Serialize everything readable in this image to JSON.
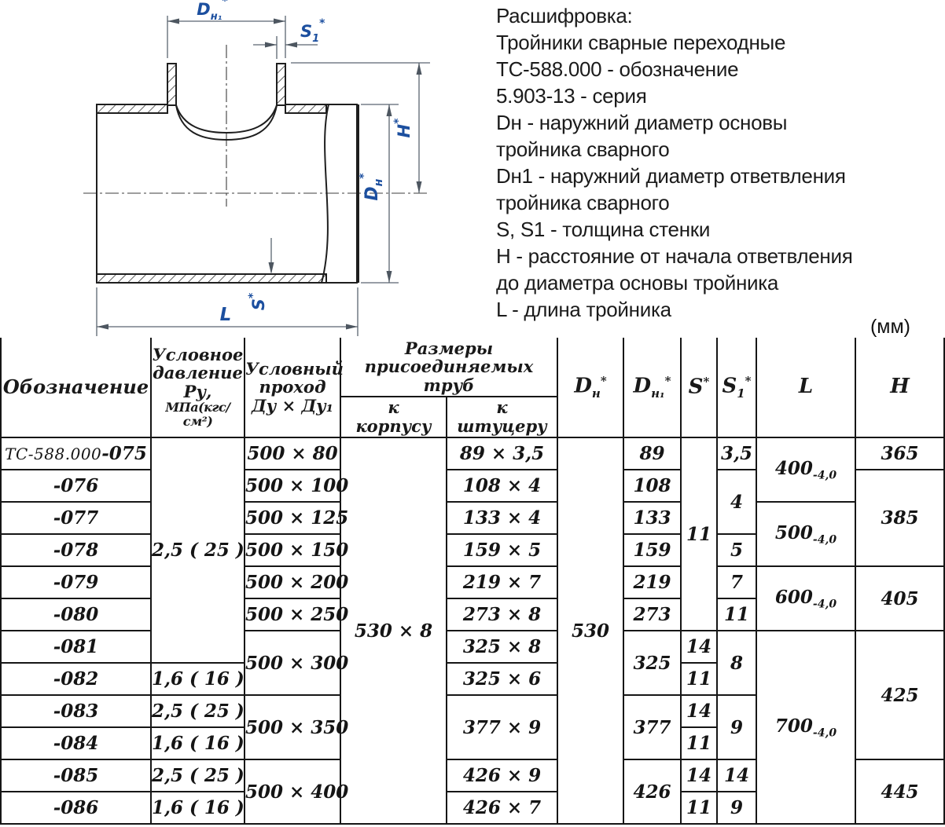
{
  "units_label": "(мм)",
  "legend": {
    "lines": [
      "Расшифровка:",
      "Тройники сварные переходные",
      "ТС-588.000 - обозначение",
      "5.903-13 - серия",
      "Dн - наружний диаметр основы",
      "тройника сварного",
      "Dн1 - наружний диаметр ответвления",
      "тройника сварного",
      "S, S1 - толщина стенки",
      "H - расстояние от начала ответвления",
      "до диаметра основы тройника",
      "L - длина тройника"
    ]
  },
  "drawing": {
    "accent_color": "#1c4f9f",
    "labels": {
      "dn1": {
        "base": "D",
        "sub": "н₁",
        "sup": "*"
      },
      "s1": {
        "base": "S",
        "sub": "1",
        "sup": "*"
      },
      "h": {
        "base": "H",
        "sup": "*"
      },
      "dn": {
        "base": "D",
        "sub": "н",
        "sup": "*"
      },
      "s": {
        "base": "S",
        "sup": "*"
      },
      "l": {
        "base": "L"
      }
    }
  },
  "table": {
    "row_count": 12,
    "headers": {
      "designation": "Обозначение",
      "pressure_lines": [
        "Условное",
        "давление",
        "Ру,",
        "МПа(кгс/см²)"
      ],
      "pass_lines": [
        "Условный",
        "проход",
        "Ду × Ду₁"
      ],
      "pipes_group": [
        "Размеры",
        "присоединяемых труб"
      ],
      "to_body": [
        "к",
        "корпусу"
      ],
      "to_branch": [
        "к",
        "штуцеру"
      ],
      "dn": {
        "base": "D",
        "sub": "н",
        "sup": "*"
      },
      "dn1": {
        "base": "D",
        "sub": "н₁",
        "sup": "*"
      },
      "s": {
        "base": "S",
        "sup": "*"
      },
      "s1": {
        "base": "S",
        "sub": "1",
        "sup": "*"
      },
      "l": "L",
      "h": "H"
    },
    "columns": [
      {
        "key": "designation",
        "cells": [
          {
            "pre": "ТС-588.000",
            "t": "-075"
          },
          {
            "t": "-076"
          },
          {
            "t": "-077"
          },
          {
            "t": "-078"
          },
          {
            "t": "-079"
          },
          {
            "t": "-080"
          },
          {
            "t": "-081"
          },
          {
            "t": "-082"
          },
          {
            "t": "-083"
          },
          {
            "t": "-084"
          },
          {
            "t": "-085"
          },
          {
            "t": "-086"
          }
        ]
      },
      {
        "key": "pressure",
        "cells": [
          {
            "t": "2,5 ( 25 )",
            "rs": 7
          },
          {
            "t": "1,6 ( 16 )"
          },
          {
            "t": "2,5 ( 25 )"
          },
          {
            "t": "1,6 ( 16 )"
          },
          {
            "t": "2,5 ( 25 )"
          },
          {
            "t": "1,6 ( 16 )"
          }
        ]
      },
      {
        "key": "pass",
        "cells": [
          {
            "t": "500 × 80"
          },
          {
            "t": "500 × 100"
          },
          {
            "t": "500 × 125"
          },
          {
            "t": "500 × 150"
          },
          {
            "t": "500 × 200"
          },
          {
            "t": "500 × 250"
          },
          {
            "t": "500 × 300",
            "rs": 2
          },
          {
            "t": "500 × 350",
            "rs": 2
          },
          {
            "t": "500 × 400",
            "rs": 2
          }
        ]
      },
      {
        "key": "tobody",
        "cells": [
          {
            "t": "530 × 8",
            "rs": 12
          }
        ]
      },
      {
        "key": "tobranch",
        "cells": [
          {
            "t": "89 × 3,5"
          },
          {
            "t": "108 × 4"
          },
          {
            "t": "133 × 4"
          },
          {
            "t": "159 × 5"
          },
          {
            "t": "219 × 7"
          },
          {
            "t": "273 × 8"
          },
          {
            "t": "325 × 8"
          },
          {
            "t": "325 × 6"
          },
          {
            "t": "377 × 9",
            "rs": 2
          },
          {
            "t": "426 × 9"
          },
          {
            "t": "426 × 7"
          }
        ]
      },
      {
        "key": "dn",
        "cells": [
          {
            "t": "530",
            "rs": 12
          }
        ]
      },
      {
        "key": "dn1",
        "cells": [
          {
            "t": "89"
          },
          {
            "t": "108"
          },
          {
            "t": "133"
          },
          {
            "t": "159"
          },
          {
            "t": "219"
          },
          {
            "t": "273"
          },
          {
            "t": "325",
            "rs": 2
          },
          {
            "t": "377",
            "rs": 2
          },
          {
            "t": "426",
            "rs": 2
          }
        ]
      },
      {
        "key": "s",
        "cells": [
          {
            "t": "11",
            "rs": 6
          },
          {
            "t": "14"
          },
          {
            "t": "11"
          },
          {
            "t": "14"
          },
          {
            "t": "11"
          },
          {
            "t": "14"
          },
          {
            "t": "11"
          }
        ]
      },
      {
        "key": "s1",
        "cells": [
          {
            "t": "3,5"
          },
          {
            "t": "4",
            "rs": 2
          },
          {
            "t": "5"
          },
          {
            "t": "7"
          },
          {
            "t": "11"
          },
          {
            "t": "8",
            "rs": 2
          },
          {
            "t": "9",
            "rs": 2
          },
          {
            "t": "14"
          },
          {
            "t": "9"
          }
        ]
      },
      {
        "key": "l",
        "cells": [
          {
            "t": "400",
            "sub": "-4,0",
            "rs": 2
          },
          {
            "t": "500",
            "sub": "-4,0",
            "rs": 2
          },
          {
            "t": "600",
            "sub": "-4,0",
            "rs": 2
          },
          {
            "t": "700",
            "sub": "-4,0",
            "rs": 6
          }
        ]
      },
      {
        "key": "h",
        "cells": [
          {
            "t": "365"
          },
          {
            "t": "385",
            "rs": 3
          },
          {
            "t": "405",
            "rs": 2
          },
          {
            "t": "425",
            "rs": 4
          },
          {
            "t": "445",
            "rs": 2
          }
        ]
      }
    ]
  }
}
